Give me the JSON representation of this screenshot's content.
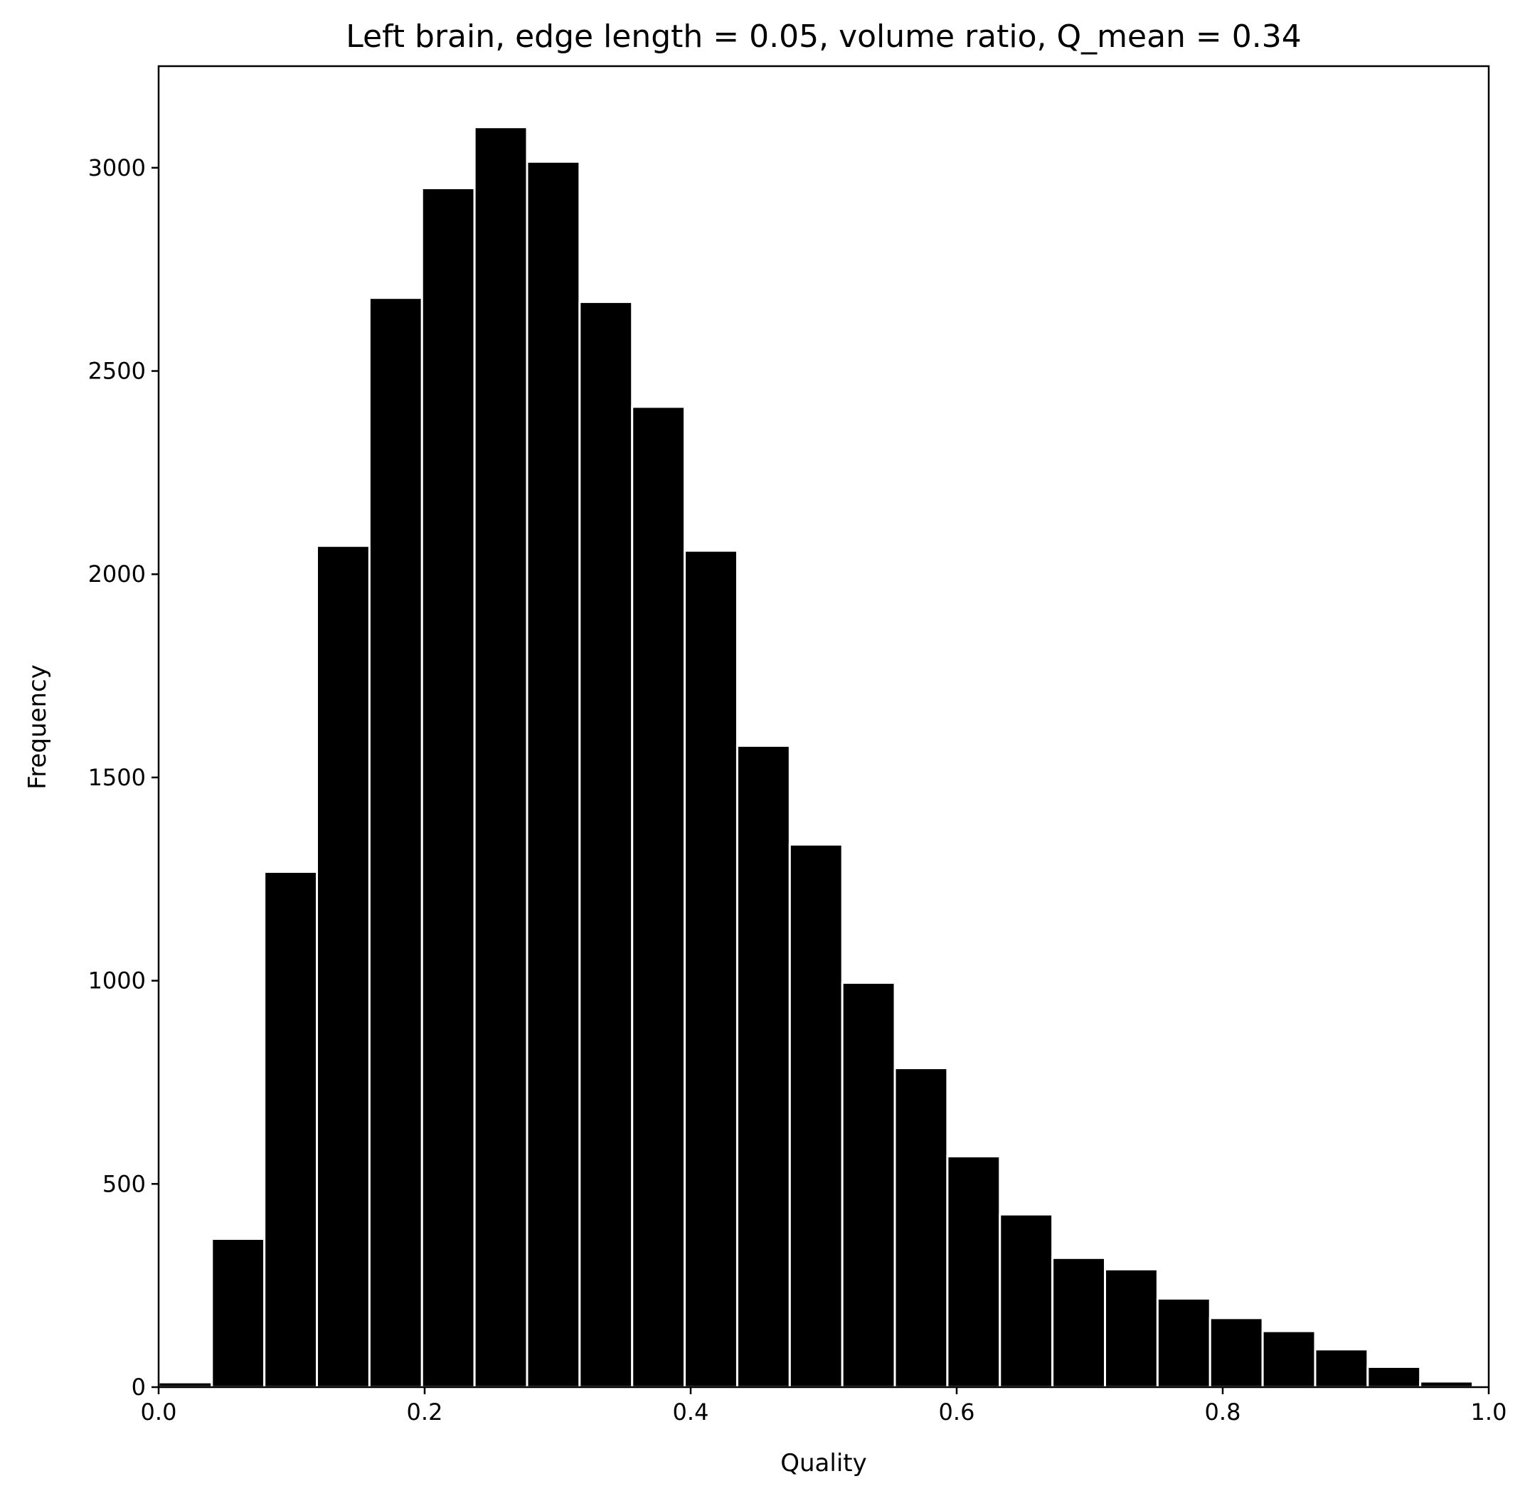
{
  "chart_data": {
    "type": "bar",
    "title": "Left brain, edge length = 0.05, volume ratio, Q_mean = 0.34",
    "xlabel": "Quality",
    "ylabel": "Frequency",
    "xlim": [
      0.0,
      1.0
    ],
    "ylim": [
      0,
      3250
    ],
    "xticks": [
      "0.0",
      "0.2",
      "0.4",
      "0.6",
      "0.8",
      "1.0"
    ],
    "yticks": [
      "0",
      "500",
      "1000",
      "1500",
      "2000",
      "2500",
      "3000"
    ],
    "grid": false,
    "bar_color": "#000000",
    "bar_edge_color": "#ffffff",
    "bins": [
      {
        "x0": 0.0,
        "x1": 0.04,
        "count": 12
      },
      {
        "x0": 0.04,
        "x1": 0.0795,
        "count": 365
      },
      {
        "x0": 0.0795,
        "x1": 0.119,
        "count": 1268
      },
      {
        "x0": 0.119,
        "x1": 0.1585,
        "count": 2070
      },
      {
        "x0": 0.1585,
        "x1": 0.198,
        "count": 2680
      },
      {
        "x0": 0.198,
        "x1": 0.2375,
        "count": 2950
      },
      {
        "x0": 0.2375,
        "x1": 0.277,
        "count": 3100
      },
      {
        "x0": 0.277,
        "x1": 0.3165,
        "count": 3015
      },
      {
        "x0": 0.3165,
        "x1": 0.356,
        "count": 2670
      },
      {
        "x0": 0.356,
        "x1": 0.3955,
        "count": 2412
      },
      {
        "x0": 0.3955,
        "x1": 0.435,
        "count": 2058
      },
      {
        "x0": 0.435,
        "x1": 0.4745,
        "count": 1578
      },
      {
        "x0": 0.4745,
        "x1": 0.514,
        "count": 1335
      },
      {
        "x0": 0.514,
        "x1": 0.5535,
        "count": 995
      },
      {
        "x0": 0.5535,
        "x1": 0.593,
        "count": 785
      },
      {
        "x0": 0.593,
        "x1": 0.6325,
        "count": 568
      },
      {
        "x0": 0.6325,
        "x1": 0.672,
        "count": 425
      },
      {
        "x0": 0.672,
        "x1": 0.7115,
        "count": 318
      },
      {
        "x0": 0.7115,
        "x1": 0.751,
        "count": 290
      },
      {
        "x0": 0.751,
        "x1": 0.7905,
        "count": 218
      },
      {
        "x0": 0.7905,
        "x1": 0.83,
        "count": 170
      },
      {
        "x0": 0.83,
        "x1": 0.8695,
        "count": 138
      },
      {
        "x0": 0.8695,
        "x1": 0.909,
        "count": 93
      },
      {
        "x0": 0.909,
        "x1": 0.9485,
        "count": 50
      },
      {
        "x0": 0.9485,
        "x1": 0.988,
        "count": 14
      }
    ]
  }
}
